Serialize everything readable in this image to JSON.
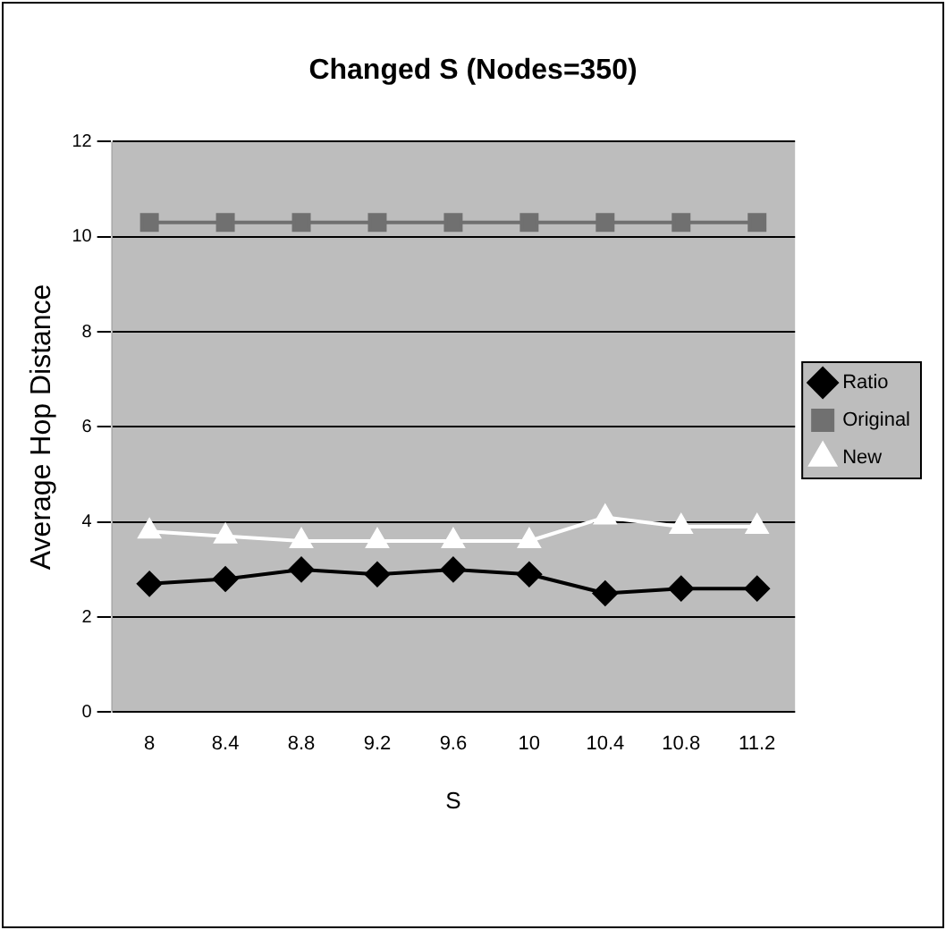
{
  "chart_data": {
    "type": "line",
    "title": "Changed S (Nodes=350)",
    "xlabel": "S",
    "ylabel": "Average Hop Distance",
    "categories": [
      "8",
      "8.4",
      "8.8",
      "9.2",
      "9.6",
      "10",
      "10.4",
      "10.8",
      "11.2"
    ],
    "series": [
      {
        "name": "Ratio",
        "color": "#000000",
        "marker": "diamond",
        "values": [
          2.7,
          2.8,
          3.0,
          2.9,
          3.0,
          2.9,
          2.5,
          2.6,
          2.6
        ]
      },
      {
        "name": "Original",
        "color": "#707070",
        "marker": "square",
        "values": [
          10.3,
          10.3,
          10.3,
          10.3,
          10.3,
          10.3,
          10.3,
          10.3,
          10.3
        ]
      },
      {
        "name": "New",
        "color": "#ffffff",
        "marker": "triangle",
        "values": [
          3.8,
          3.7,
          3.6,
          3.6,
          3.6,
          3.6,
          4.1,
          3.9,
          3.9
        ]
      }
    ],
    "ylim": [
      0,
      12
    ],
    "yticks": [
      0,
      2,
      4,
      6,
      8,
      10,
      12
    ],
    "grid": "y",
    "legend": "right"
  }
}
